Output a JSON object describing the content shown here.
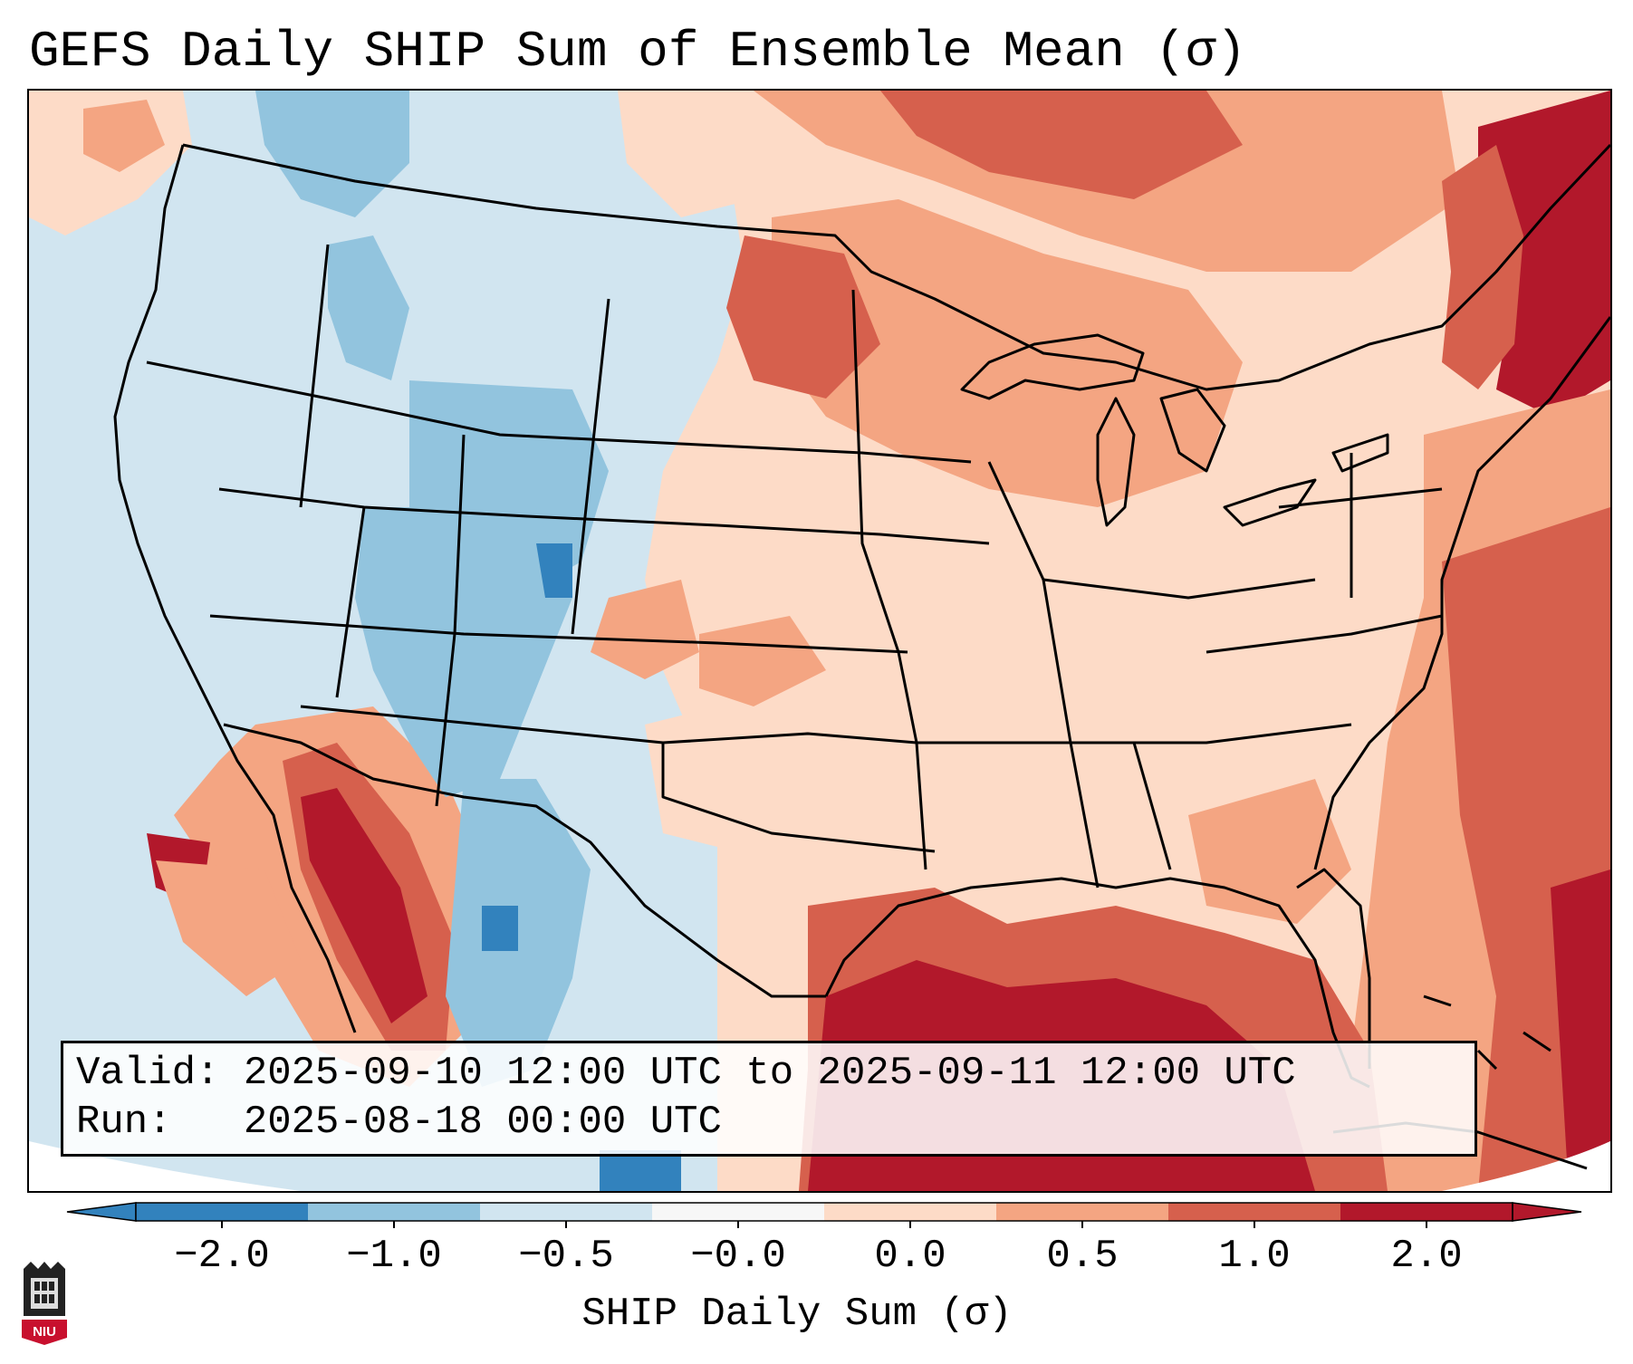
{
  "title": "GEFS Daily SHIP Sum of Ensemble Mean (σ)",
  "info": {
    "valid_line": "Valid: 2025-09-10 12:00 UTC to 2025-09-11 12:00 UTC",
    "run_line": "Run:   2025-08-18 00:00 UTC"
  },
  "colorbar": {
    "title": "SHIP Daily Sum (σ)",
    "tick_labels": [
      "−2.0",
      "−1.0",
      "−0.5",
      "−0.0",
      "0.0",
      "0.5",
      "1.0",
      "2.0"
    ],
    "colors": [
      "#3282bd",
      "#92c4de",
      "#d1e5f0",
      "#f7f7f7",
      "#fddbc7",
      "#f4a582",
      "#d6604d",
      "#b2182b"
    ],
    "extend": "both"
  },
  "colors": {
    "strong_negative": "#3282bd",
    "negative": "#92c4de",
    "weak_negative": "#d1e5f0",
    "neutral": "#f7f7f7",
    "weak_positive": "#fddbc7",
    "positive": "#f4a582",
    "strong_positive": "#d6604d",
    "extreme_positive": "#b2182b"
  },
  "logo": {
    "text": "NIU",
    "icon": "university-logo-icon"
  }
}
